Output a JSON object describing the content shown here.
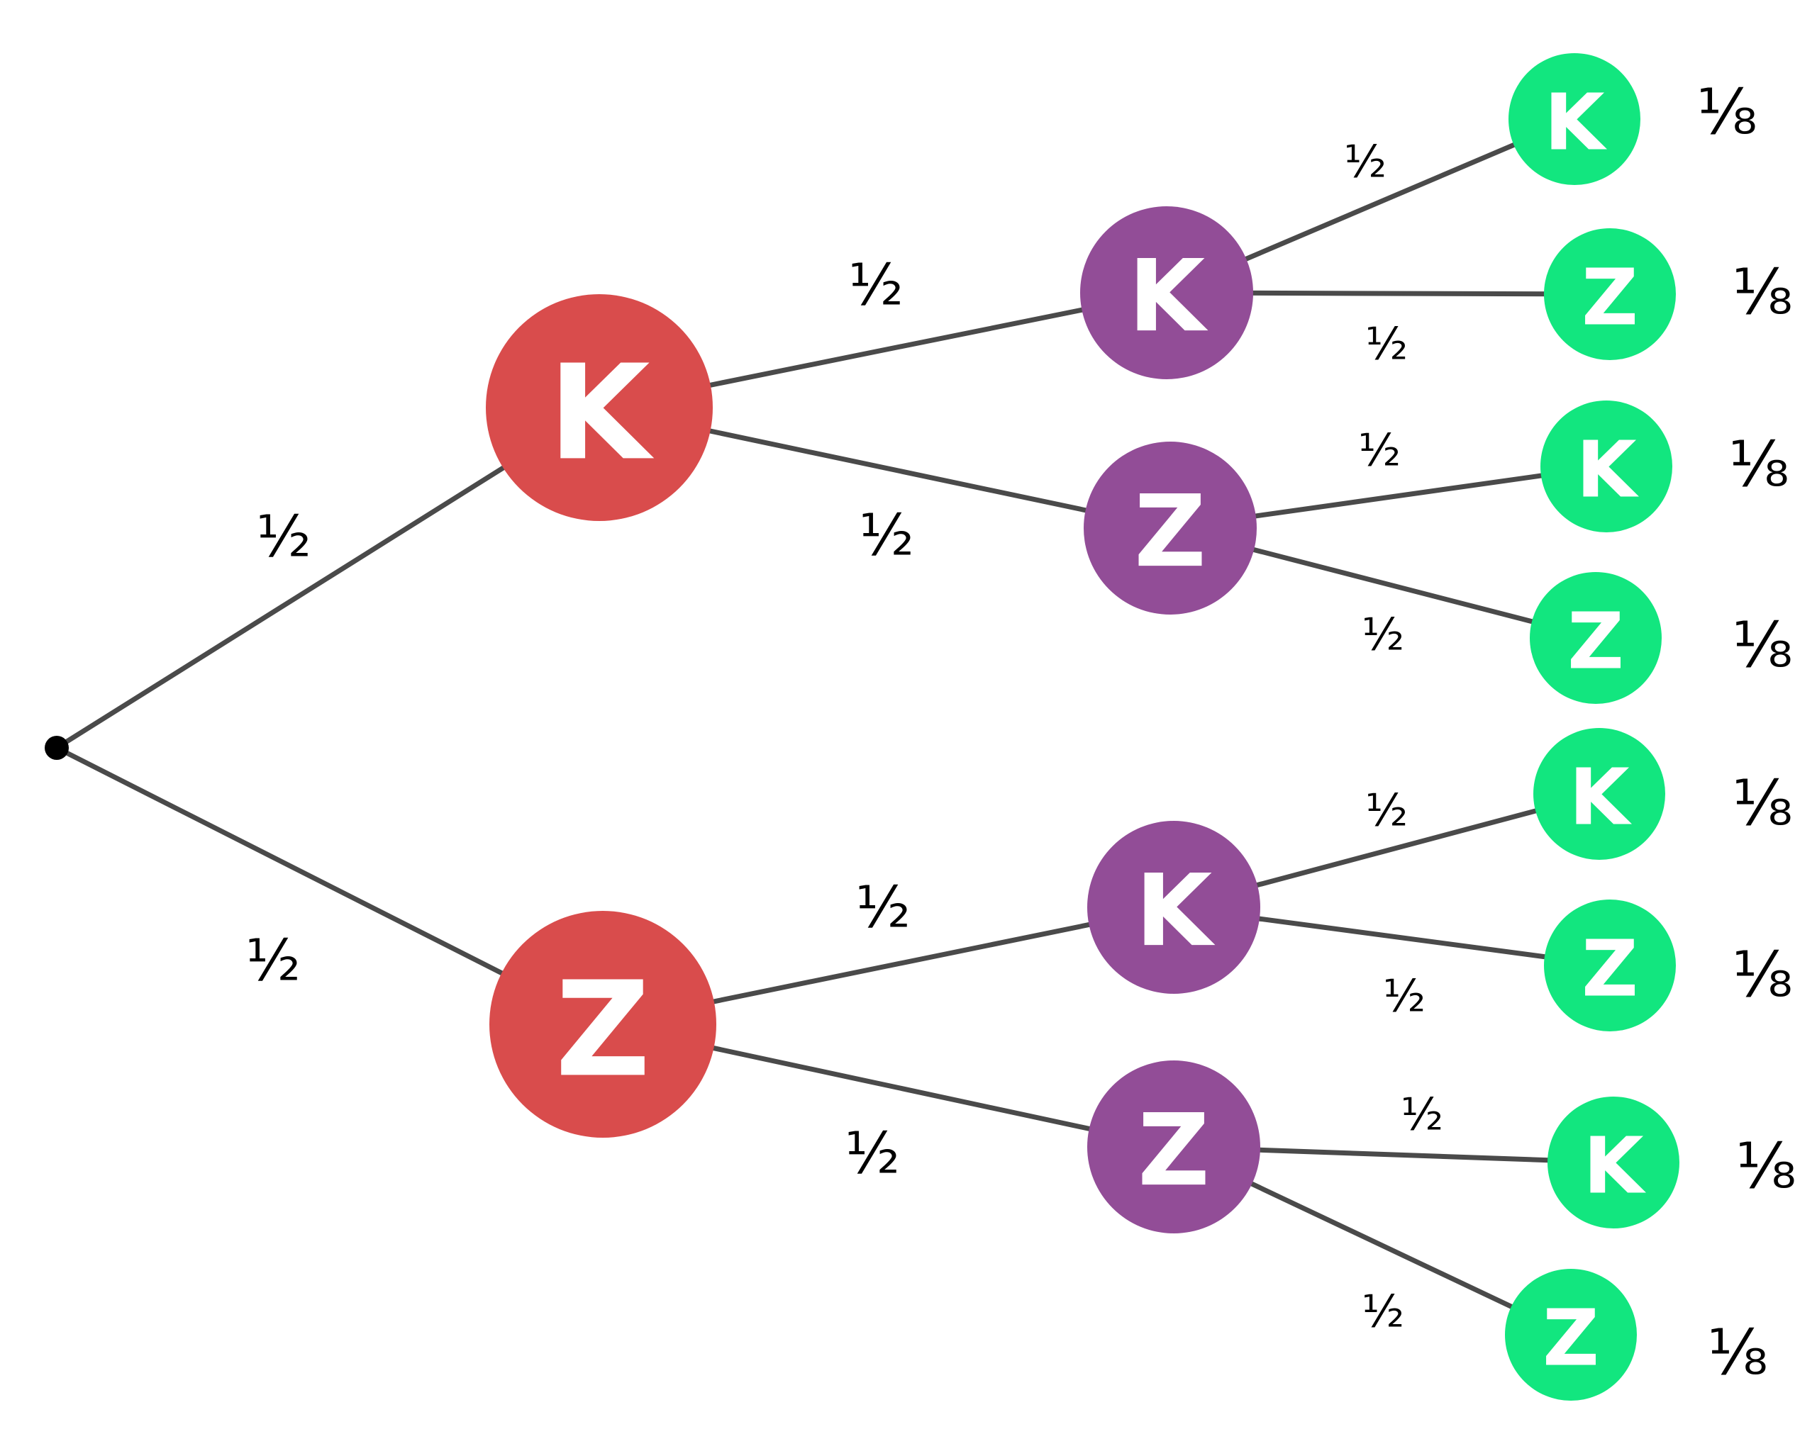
{
  "colors": {
    "level1": "#d94c4c",
    "level2": "#924d97",
    "level3": "#12e67f",
    "edge": "#4a4a4a",
    "root": "#000000"
  },
  "tree": {
    "root": {
      "id": "root"
    },
    "nodes": [
      {
        "id": "k1",
        "level": 1,
        "letter": "K",
        "parent": "root",
        "edge_label": "½"
      },
      {
        "id": "z1",
        "level": 1,
        "letter": "Z",
        "parent": "root",
        "edge_label": "½"
      },
      {
        "id": "kk",
        "level": 2,
        "letter": "K",
        "parent": "k1",
        "edge_label": "½"
      },
      {
        "id": "kz",
        "level": 2,
        "letter": "Z",
        "parent": "k1",
        "edge_label": "½"
      },
      {
        "id": "zk",
        "level": 2,
        "letter": "K",
        "parent": "z1",
        "edge_label": "½"
      },
      {
        "id": "zz",
        "level": 2,
        "letter": "Z",
        "parent": "z1",
        "edge_label": "½"
      },
      {
        "id": "kkk",
        "level": 3,
        "letter": "K",
        "parent": "kk",
        "edge_label": "½",
        "outcome": "⅛"
      },
      {
        "id": "kkz",
        "level": 3,
        "letter": "Z",
        "parent": "kk",
        "edge_label": "½",
        "outcome": "⅛"
      },
      {
        "id": "kzk",
        "level": 3,
        "letter": "K",
        "parent": "kz",
        "edge_label": "½",
        "outcome": "⅛"
      },
      {
        "id": "kzz",
        "level": 3,
        "letter": "Z",
        "parent": "kz",
        "edge_label": "½",
        "outcome": "⅛"
      },
      {
        "id": "zkk",
        "level": 3,
        "letter": "K",
        "parent": "zk",
        "edge_label": "½",
        "outcome": "⅛"
      },
      {
        "id": "zkz",
        "level": 3,
        "letter": "Z",
        "parent": "zk",
        "edge_label": "½",
        "outcome": "⅛"
      },
      {
        "id": "zzk",
        "level": 3,
        "letter": "K",
        "parent": "zz",
        "edge_label": "½",
        "outcome": "⅛"
      },
      {
        "id": "zzz",
        "level": 3,
        "letter": "Z",
        "parent": "zz",
        "edge_label": "½",
        "outcome": "⅛"
      }
    ]
  }
}
